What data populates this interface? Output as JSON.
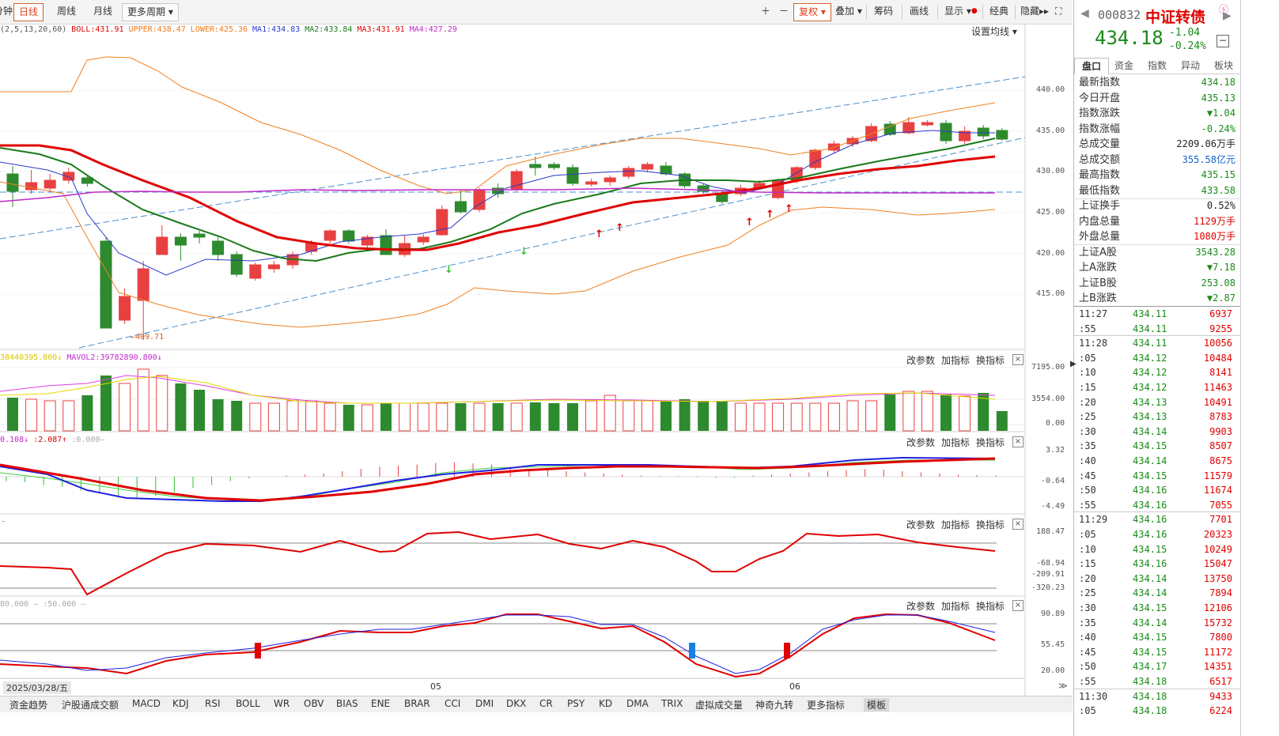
{
  "toolbar": {
    "minute_label": "分钟",
    "periods": [
      "日线",
      "周线",
      "月线"
    ],
    "more_periods": "更多周期",
    "fuquan": "复权",
    "overlay": "叠加",
    "chip": "筹码",
    "draw": "画线",
    "display": "显示",
    "classic": "经典",
    "hide": "隐藏"
  },
  "legend": {
    "boll_params": "(2,5,13,20,60)",
    "boll": "BOLL:431.91",
    "upper": "UPPER:438.47",
    "lower": "LOWER:425.36",
    "ma1": "MA1:434.83",
    "ma2": "MA2:433.84",
    "ma3": "MA3:431.91",
    "ma4": "MA4:427.29",
    "set_ma": "设置均线"
  },
  "main_chart": {
    "y_ticks": [
      "440.00",
      "435.00",
      "430.00",
      "425.00",
      "420.00",
      "415.00"
    ],
    "low_marker": "409.71"
  },
  "vol_panel": {
    "legend1": "38440395.800",
    "legend2": "MAVOL2:39782890.800",
    "y_ticks": [
      "7195.00",
      "3554.00",
      "0.00"
    ]
  },
  "macd_panel": {
    "legend1": "0.108",
    "legend2": ":2.087",
    "legend3": ":0.000",
    "y_ticks": [
      "3.32",
      "-0.64",
      "-4.49"
    ]
  },
  "cci_panel": {
    "y_ticks": [
      "188.47",
      "-68.94",
      "-209.91",
      "-320.23"
    ]
  },
  "kdj_panel": {
    "legend1": "80.000",
    "legend2": ":50.000",
    "y_ticks": [
      "90.89",
      "55.45",
      "20.00"
    ]
  },
  "panel_buttons": {
    "params": "改参数",
    "add": "加指标",
    "switch": "换指标",
    "close": "×"
  },
  "x_axis": {
    "date_box": "2025/03/28/五",
    "label_05": "05",
    "label_06": "06"
  },
  "bottom_tabs": [
    "资金趋势",
    "沪股通成交额",
    "MACD",
    "KDJ",
    "RSI",
    "BOLL",
    "WR",
    "OBV",
    "BIAS",
    "ENE",
    "BRAR",
    "CCI",
    "DMI",
    "DKX",
    "CR",
    "PSY",
    "KD",
    "DMA",
    "TRIX",
    "虚拟成交量",
    "神奇九转",
    "更多指标",
    "模板"
  ],
  "quote": {
    "code": "000832",
    "name": "中证转债",
    "price": "434.18",
    "change": "-1.04",
    "change_pct": "-0.24%",
    "tabs": [
      "盘口",
      "资金",
      "指数",
      "异动",
      "板块"
    ],
    "rows": [
      {
        "label": "最新指数",
        "value": "434.18",
        "color": "green"
      },
      {
        "label": "今日开盘",
        "value": "435.13",
        "color": "green"
      },
      {
        "label": "指数涨跌",
        "value": "▼1.04",
        "color": "green"
      },
      {
        "label": "指数涨幅",
        "value": "-0.24%",
        "color": "green"
      },
      {
        "label": "总成交量",
        "value": "2209.06万手",
        "color": "dark"
      },
      {
        "label": "总成交额",
        "value": "355.58亿元",
        "color": "blue"
      },
      {
        "label": "最高指数",
        "value": "435.15",
        "color": "green"
      },
      {
        "label": "最低指数",
        "value": "433.58",
        "color": "green"
      },
      {
        "label": "上证换手",
        "value": "0.52%",
        "color": "dark"
      },
      {
        "label": "内盘总量",
        "value": "1129万手",
        "color": "red"
      },
      {
        "label": "外盘总量",
        "value": "1080万手",
        "color": "red"
      },
      {
        "label": "上证A股",
        "value": "3543.28",
        "color": "green"
      },
      {
        "label": "上A涨跌",
        "value": "▼7.18",
        "color": "green"
      },
      {
        "label": "上证B股",
        "value": "253.08",
        "color": "green"
      },
      {
        "label": "上B涨跌",
        "value": "▼2.87",
        "color": "green"
      }
    ]
  },
  "ticks": [
    {
      "time": "11:27",
      "price": "434.11",
      "vol": "6937"
    },
    {
      "time": ":55",
      "price": "434.11",
      "vol": "9255"
    },
    {
      "time": "11:28",
      "price": "434.11",
      "vol": "10056"
    },
    {
      "time": ":05",
      "price": "434.12",
      "vol": "10484"
    },
    {
      "time": ":10",
      "price": "434.12",
      "vol": "8141"
    },
    {
      "time": ":15",
      "price": "434.12",
      "vol": "11463"
    },
    {
      "time": ":20",
      "price": "434.13",
      "vol": "10491"
    },
    {
      "time": ":25",
      "price": "434.13",
      "vol": "8783"
    },
    {
      "time": ":30",
      "price": "434.14",
      "vol": "9903"
    },
    {
      "time": ":35",
      "price": "434.15",
      "vol": "8507"
    },
    {
      "time": ":40",
      "price": "434.14",
      "vol": "8675"
    },
    {
      "time": ":45",
      "price": "434.15",
      "vol": "11579"
    },
    {
      "time": ":50",
      "price": "434.16",
      "vol": "11674"
    },
    {
      "time": ":55",
      "price": "434.16",
      "vol": "7055"
    },
    {
      "time": "11:29",
      "price": "434.16",
      "vol": "7701"
    },
    {
      "time": ":05",
      "price": "434.16",
      "vol": "20323"
    },
    {
      "time": ":10",
      "price": "434.15",
      "vol": "10249"
    },
    {
      "time": ":15",
      "price": "434.16",
      "vol": "15047"
    },
    {
      "time": ":20",
      "price": "434.14",
      "vol": "13750"
    },
    {
      "time": ":25",
      "price": "434.14",
      "vol": "7894"
    },
    {
      "time": ":30",
      "price": "434.15",
      "vol": "12106"
    },
    {
      "time": ":35",
      "price": "434.14",
      "vol": "15732"
    },
    {
      "time": ":40",
      "price": "434.15",
      "vol": "7800"
    },
    {
      "time": ":45",
      "price": "434.15",
      "vol": "11172"
    },
    {
      "time": ":50",
      "price": "434.17",
      "vol": "14351"
    },
    {
      "time": ":55",
      "price": "434.18",
      "vol": "6517"
    },
    {
      "time": "11:30",
      "price": "434.18",
      "vol": "9433"
    },
    {
      "time": ":05",
      "price": "434.18",
      "vol": "6224"
    }
  ]
}
